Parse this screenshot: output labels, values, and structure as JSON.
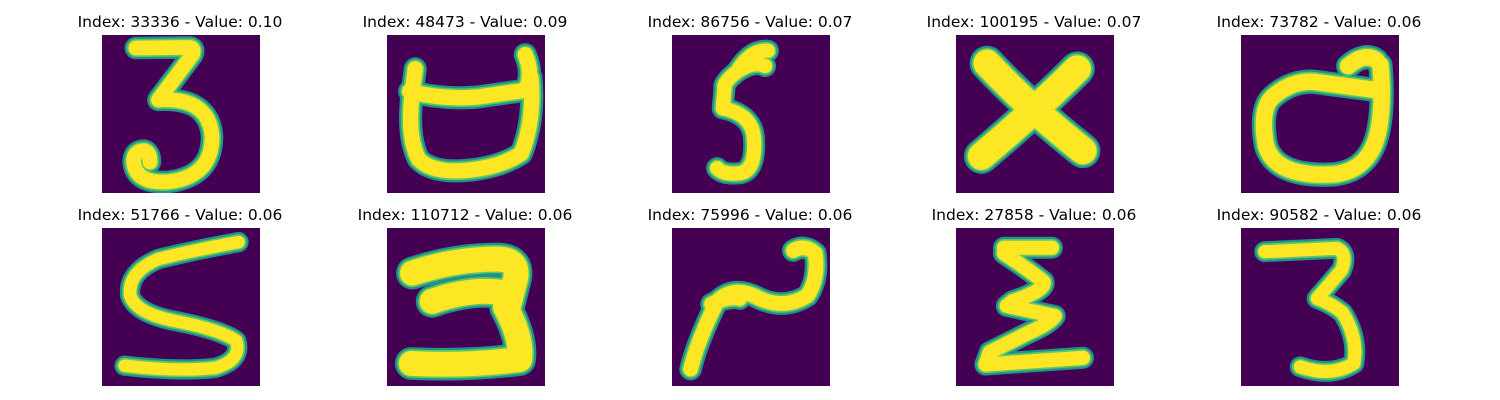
{
  "colors": {
    "background": "#440154",
    "edge": "#21918c",
    "mid": "#5ec962",
    "stroke": "#fde725"
  },
  "panels": [
    {
      "index": "33336",
      "value": "0.10",
      "title": "Index: 33336 - Value: 0.10",
      "glyph": "three-a"
    },
    {
      "index": "48473",
      "value": "0.09",
      "title": "Index: 48473 - Value: 0.09",
      "glyph": "cup-a"
    },
    {
      "index": "86756",
      "value": "0.07",
      "title": "Index: 86756 - Value: 0.07",
      "glyph": "five-narrow"
    },
    {
      "index": "100195",
      "value": "0.07",
      "title": "Index: 100195 - Value: 0.07",
      "glyph": "x-cross"
    },
    {
      "index": "73782",
      "value": "0.06",
      "title": "Index: 73782 - Value: 0.06",
      "glyph": "cup-b"
    },
    {
      "index": "51766",
      "value": "0.06",
      "title": "Index: 51766 - Value: 0.06",
      "glyph": "five-wide"
    },
    {
      "index": "110712",
      "value": "0.06",
      "title": "Index: 110712 - Value: 0.06",
      "glyph": "two-bold"
    },
    {
      "index": "75996",
      "value": "0.06",
      "title": "Index: 75996 - Value: 0.06",
      "glyph": "two-slant"
    },
    {
      "index": "27858",
      "value": "0.06",
      "title": "Index: 27858 - Value: 0.06",
      "glyph": "sigma"
    },
    {
      "index": "90582",
      "value": "0.06",
      "title": "Index: 90582 - Value: 0.06",
      "glyph": "three-b"
    }
  ]
}
